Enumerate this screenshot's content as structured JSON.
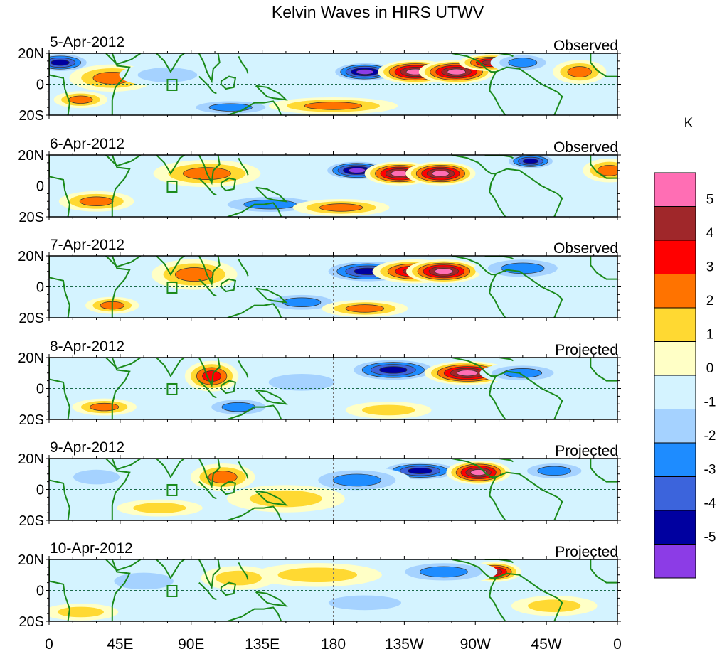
{
  "chart_data": {
    "type": "heatmap",
    "title": "Kelvin Waves in HIRS UTWV",
    "units": "K",
    "x_ticks": [
      "0",
      "45E",
      "90E",
      "135E",
      "180",
      "135W",
      "90W",
      "45W",
      "0"
    ],
    "x_tick_lon": [
      0,
      45,
      90,
      135,
      180,
      225,
      270,
      315,
      360
    ],
    "y_ticks": [
      "20N",
      "0",
      "20S"
    ],
    "y_tick_lat": [
      20,
      0,
      -20
    ],
    "lon_range": [
      0,
      360
    ],
    "lat_range": [
      -20,
      20
    ],
    "colorbar": {
      "labels": [
        "5",
        "4",
        "3",
        "2",
        "1",
        "0",
        "-1",
        "-2",
        "-3",
        "-4",
        "-5"
      ],
      "colors": [
        "#ff6eb4",
        "#a0272a",
        "#ff0000",
        "#ff7300",
        "#ffd932",
        "#ffffc6",
        "#d4f3ff",
        "#a5d2ff",
        "#1e8cff",
        "#3c64dc",
        "#0000a0",
        "#8c3ce6"
      ]
    },
    "panels": [
      {
        "date": "5-Apr-2012",
        "type": "Observed",
        "features": [
          {
            "lon": 200,
            "lat": 8,
            "value": -5.5,
            "wlon": 13,
            "wlat": 6
          },
          {
            "lon": 232,
            "lat": 8,
            "value": 5.5,
            "wlon": 14,
            "wlat": 7
          },
          {
            "lon": 258,
            "lat": 8,
            "value": 5.5,
            "wlon": 14,
            "wlat": 7
          },
          {
            "lon": 280,
            "lat": 14,
            "value": 5,
            "wlon": 12,
            "wlat": 5
          },
          {
            "lon": 7,
            "lat": 14,
            "value": -5,
            "wlon": 12,
            "wlat": 6
          },
          {
            "lon": 40,
            "lat": 4,
            "value": 3,
            "wlon": 16,
            "wlat": 8
          },
          {
            "lon": 336,
            "lat": 8,
            "value": 3,
            "wlon": 10,
            "wlat": 7
          },
          {
            "lon": 20,
            "lat": -10,
            "value": 2.5,
            "wlon": 10,
            "wlat": 5
          },
          {
            "lon": 300,
            "lat": 14,
            "value": -3,
            "wlon": 12,
            "wlat": 6
          },
          {
            "lon": 115,
            "lat": -15,
            "value": -3,
            "wlon": 18,
            "wlat": 5
          },
          {
            "lon": 180,
            "lat": -14,
            "value": 2.5,
            "wlon": 24,
            "wlat": 5
          },
          {
            "lon": 75,
            "lat": 6,
            "value": -2,
            "wlon": 18,
            "wlat": 7
          }
        ]
      },
      {
        "date": "6-Apr-2012",
        "type": "Observed",
        "features": [
          {
            "lon": 195,
            "lat": 10,
            "value": -5.5,
            "wlon": 13,
            "wlat": 6
          },
          {
            "lon": 222,
            "lat": 8,
            "value": 5.5,
            "wlon": 13,
            "wlat": 7
          },
          {
            "lon": 248,
            "lat": 8,
            "value": 5.5,
            "wlon": 13,
            "wlat": 7
          },
          {
            "lon": 100,
            "lat": 8,
            "value": 3,
            "wlon": 20,
            "wlat": 8
          },
          {
            "lon": 305,
            "lat": 16,
            "value": -4.5,
            "wlon": 10,
            "wlat": 5
          },
          {
            "lon": 30,
            "lat": -10,
            "value": 2.5,
            "wlon": 14,
            "wlat": 6
          },
          {
            "lon": 355,
            "lat": 10,
            "value": 3,
            "wlon": 10,
            "wlat": 7
          },
          {
            "lon": 140,
            "lat": -12,
            "value": -3,
            "wlon": 22,
            "wlat": 6
          },
          {
            "lon": 185,
            "lat": -14,
            "value": 2.5,
            "wlon": 18,
            "wlat": 5
          }
        ]
      },
      {
        "date": "7-Apr-2012",
        "type": "Observed",
        "features": [
          {
            "lon": 202,
            "lat": 10,
            "value": -5,
            "wlon": 18,
            "wlat": 7
          },
          {
            "lon": 232,
            "lat": 10,
            "value": 4.5,
            "wlon": 16,
            "wlat": 7
          },
          {
            "lon": 250,
            "lat": 10,
            "value": 5.5,
            "wlon": 14,
            "wlat": 7
          },
          {
            "lon": 92,
            "lat": 8,
            "value": 3,
            "wlon": 16,
            "wlat": 9
          },
          {
            "lon": 300,
            "lat": 12,
            "value": -3,
            "wlon": 18,
            "wlat": 7
          },
          {
            "lon": 40,
            "lat": -12,
            "value": 3,
            "wlon": 10,
            "wlat": 5
          },
          {
            "lon": 160,
            "lat": -10,
            "value": -3,
            "wlon": 16,
            "wlat": 6
          },
          {
            "lon": 200,
            "lat": -14,
            "value": 2.5,
            "wlon": 16,
            "wlat": 5
          }
        ]
      },
      {
        "date": "8-Apr-2012",
        "type": "Projected",
        "features": [
          {
            "lon": 218,
            "lat": 12,
            "value": -4.5,
            "wlon": 18,
            "wlat": 7
          },
          {
            "lon": 265,
            "lat": 10,
            "value": 5.5,
            "wlon": 16,
            "wlat": 7
          },
          {
            "lon": 103,
            "lat": 8,
            "value": 3.5,
            "wlon": 10,
            "wlat": 9
          },
          {
            "lon": 120,
            "lat": -12,
            "value": -3,
            "wlon": 14,
            "wlat": 6
          },
          {
            "lon": 35,
            "lat": -12,
            "value": 2.5,
            "wlon": 12,
            "wlat": 5
          },
          {
            "lon": 160,
            "lat": 4,
            "value": -2,
            "wlon": 20,
            "wlat": 8
          },
          {
            "lon": 300,
            "lat": 10,
            "value": -2.5,
            "wlon": 16,
            "wlat": 6
          },
          {
            "lon": 215,
            "lat": -14,
            "value": 2,
            "wlon": 16,
            "wlat": 5
          }
        ]
      },
      {
        "date": "9-Apr-2012",
        "type": "Projected",
        "features": [
          {
            "lon": 235,
            "lat": 12,
            "value": -4.5,
            "wlon": 16,
            "wlat": 6
          },
          {
            "lon": 272,
            "lat": 11,
            "value": 5.5,
            "wlon": 12,
            "wlat": 7
          },
          {
            "lon": 110,
            "lat": 8,
            "value": 3,
            "wlon": 12,
            "wlat": 8
          },
          {
            "lon": 195,
            "lat": 6,
            "value": -3,
            "wlon": 20,
            "wlat": 8
          },
          {
            "lon": 70,
            "lat": -12,
            "value": 2,
            "wlon": 16,
            "wlat": 5
          },
          {
            "lon": 320,
            "lat": 12,
            "value": -2.5,
            "wlon": 14,
            "wlat": 6
          },
          {
            "lon": 30,
            "lat": 8,
            "value": -2,
            "wlon": 14,
            "wlat": 7
          },
          {
            "lon": 150,
            "lat": -6,
            "value": 1.5,
            "wlon": 22,
            "wlat": 8
          }
        ]
      },
      {
        "date": "10-Apr-2012",
        "type": "Projected",
        "features": [
          {
            "lon": 282,
            "lat": 12,
            "value": 4.5,
            "wlon": 10,
            "wlat": 6
          },
          {
            "lon": 250,
            "lat": 12,
            "value": -2.5,
            "wlon": 20,
            "wlat": 7
          },
          {
            "lon": 170,
            "lat": 10,
            "value": 1.5,
            "wlon": 24,
            "wlat": 7
          },
          {
            "lon": 120,
            "lat": 8,
            "value": 2,
            "wlon": 14,
            "wlat": 7
          },
          {
            "lon": 60,
            "lat": 6,
            "value": -2,
            "wlon": 18,
            "wlat": 8
          },
          {
            "lon": 200,
            "lat": -8,
            "value": -1.5,
            "wlon": 22,
            "wlat": 7
          },
          {
            "lon": 320,
            "lat": -10,
            "value": 1.5,
            "wlon": 16,
            "wlat": 6
          },
          {
            "lon": 20,
            "lat": -14,
            "value": 1.5,
            "wlon": 14,
            "wlat": 5
          }
        ]
      }
    ]
  }
}
